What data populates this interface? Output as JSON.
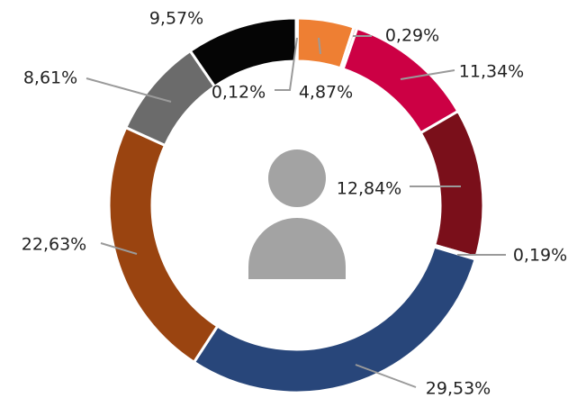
{
  "chart_data": {
    "type": "donut",
    "categories": [
      null,
      null,
      null,
      null,
      null,
      null,
      null,
      null,
      null,
      null
    ],
    "values": [
      0.12,
      4.87,
      0.29,
      11.34,
      12.84,
      0.19,
      29.53,
      22.63,
      8.61,
      9.57
    ],
    "value_labels": [
      "0,12%",
      "4,87%",
      "0,29%",
      "11,34%",
      "12,84%",
      "0,19%",
      "29,53%",
      "22,63%",
      "8,61%",
      "9,57%"
    ],
    "colors": [
      "#b5b5b5",
      "#ee7f33",
      "#f2b8c0",
      "#cc0044",
      "#7a0f1a",
      "#5a0d14",
      "#28467a",
      "#9a4410",
      "#6b6b6b",
      "#050505"
    ]
  }
}
